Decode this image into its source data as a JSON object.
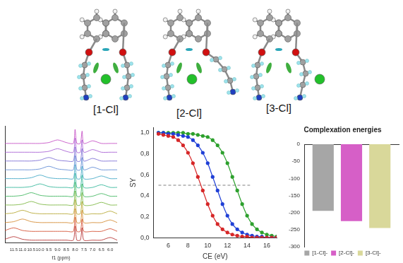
{
  "structures": {
    "labels": [
      "[1-Cl]",
      "[2-Cl]",
      "[3-Cl]"
    ]
  },
  "chart_data": [
    {
      "type": "line",
      "x_label": "f1 (ppm)",
      "marker": "none",
      "tick_labels": "x",
      "grid": false,
      "x": [
        12.0,
        11.5,
        11.0,
        10.5,
        10.0,
        9.5,
        9.0,
        8.5,
        8.1,
        8.0,
        7.9,
        7.7,
        7.6,
        7.5,
        7.0,
        6.5,
        6.0,
        5.6
      ],
      "xlim": [
        12.0,
        5.6
      ],
      "xticks": [
        {
          "value": 11.5,
          "label": "11.5"
        },
        {
          "value": 11,
          "label": "11.0"
        },
        {
          "value": 10.5,
          "label": "10.5"
        },
        {
          "value": 10,
          "label": "10.0"
        },
        {
          "value": 9.5,
          "label": "9.5"
        },
        {
          "value": 9,
          "label": "9.0"
        },
        {
          "value": 8.5,
          "label": "8.5"
        },
        {
          "value": 8,
          "label": "8.0"
        },
        {
          "value": 7.5,
          "label": "7.5"
        },
        {
          "value": 7,
          "label": "7.0"
        },
        {
          "value": 6.5,
          "label": "6.5"
        },
        {
          "value": 6,
          "label": "6.0"
        }
      ],
      "ylim": [
        -0.3,
        13
      ],
      "yticks": [],
      "series": [
        {
          "color": "#c040c0",
          "values": [
            11,
            11,
            11,
            11,
            11,
            11.1,
            11.4,
            11.1,
            11,
            12.6,
            11,
            11,
            12.4,
            11,
            11.3,
            11,
            11,
            11
          ]
        },
        {
          "color": "#a050d0",
          "values": [
            10,
            10,
            10,
            10,
            10,
            10.1,
            10.4,
            10.1,
            10,
            11.6,
            10,
            10,
            11.4,
            10,
            10.3,
            10,
            10,
            10
          ]
        },
        {
          "color": "#7060d0",
          "values": [
            9,
            9,
            9,
            9,
            9.1,
            9.4,
            9.1,
            9,
            9,
            10.6,
            9,
            9,
            10.4,
            9,
            9.3,
            9,
            9,
            9
          ]
        },
        {
          "color": "#5080d0",
          "values": [
            8,
            8,
            8,
            8,
            8.1,
            8.4,
            8.1,
            8,
            8,
            9.6,
            8,
            8,
            9.4,
            8,
            8.3,
            8,
            8,
            8
          ]
        },
        {
          "color": "#30a0c0",
          "values": [
            7,
            7,
            7,
            7.1,
            7.4,
            7.1,
            7,
            7,
            7,
            8.6,
            7,
            7,
            8.4,
            7,
            7,
            7.3,
            7,
            7
          ]
        },
        {
          "color": "#20b090",
          "values": [
            6,
            6,
            6,
            6.1,
            6.4,
            6.1,
            6,
            6,
            6,
            7.6,
            6,
            6,
            7.4,
            6,
            6,
            6.3,
            6,
            6
          ]
        },
        {
          "color": "#30b050",
          "values": [
            5,
            5,
            5.1,
            5.4,
            5.1,
            5,
            5,
            5,
            5,
            6.6,
            5,
            5,
            6.4,
            5,
            5,
            5.3,
            5,
            5
          ]
        },
        {
          "color": "#70b030",
          "values": [
            4,
            4,
            4.1,
            4.4,
            4.1,
            4,
            4,
            4,
            4,
            5.6,
            4,
            4,
            5.4,
            4,
            4,
            4.3,
            4,
            4
          ]
        },
        {
          "color": "#b0a020",
          "values": [
            3,
            3.1,
            3.4,
            3.1,
            3,
            3,
            3,
            3,
            3,
            4.6,
            3,
            3,
            4.4,
            3,
            3,
            3,
            3.3,
            3
          ]
        },
        {
          "color": "#d08020",
          "values": [
            2,
            2.1,
            2.4,
            2.1,
            2,
            2,
            2,
            2,
            2,
            3.6,
            2,
            2,
            3.4,
            2,
            2,
            2,
            2.3,
            2
          ]
        },
        {
          "color": "#d04020",
          "values": [
            1.1,
            1.4,
            1.1,
            1,
            1,
            1,
            1,
            1,
            1,
            2.6,
            1,
            1,
            2.4,
            1,
            1,
            1,
            1.3,
            1
          ]
        },
        {
          "color": "#b02020",
          "values": [
            0.1,
            0.4,
            0.1,
            0,
            0,
            0,
            0,
            0,
            0,
            1.6,
            0,
            0,
            1.4,
            0,
            0,
            0,
            0.3,
            0
          ]
        }
      ]
    },
    {
      "type": "line",
      "x_label": "CE (eV)",
      "y_label": "SY",
      "marker": "circle",
      "grid": false,
      "x": [
        5,
        5.5,
        6,
        6.5,
        7,
        7.5,
        8,
        8.5,
        9,
        9.5,
        10,
        10.5,
        11,
        11.5,
        12,
        12.5,
        13,
        13.5,
        14,
        14.5,
        15,
        15.5,
        16,
        16.5,
        17
      ],
      "xlim": [
        4.5,
        17
      ],
      "xticks": [
        6,
        8,
        10,
        12,
        14,
        16
      ],
      "ylim": [
        0,
        1.05
      ],
      "yticks": [
        {
          "value": 0,
          "label": "0,0"
        },
        {
          "value": 0.2,
          "label": "0,2"
        },
        {
          "value": 0.4,
          "label": "0,4"
        },
        {
          "value": 0.6,
          "label": "0,6"
        },
        {
          "value": 0.8,
          "label": "0,8"
        },
        {
          "value": 1,
          "label": "1,0"
        }
      ],
      "reference_line": {
        "y": 0.5,
        "x": [
          5,
          14.3
        ],
        "line_style": "dashed",
        "color": "#808080"
      },
      "series": [
        {
          "color": "#d62728",
          "values": [
            0.99,
            0.98,
            0.97,
            0.96,
            0.93,
            0.88,
            0.81,
            0.71,
            0.58,
            0.45,
            0.32,
            0.21,
            0.13,
            0.08,
            0.05,
            0.03,
            0.02,
            0.01,
            0.01,
            0,
            0,
            0,
            0,
            0,
            0
          ]
        },
        {
          "color": "#1f3fd6",
          "values": [
            1,
            1,
            0.99,
            0.99,
            0.98,
            0.97,
            0.96,
            0.93,
            0.88,
            0.81,
            0.71,
            0.58,
            0.45,
            0.32,
            0.21,
            0.13,
            0.08,
            0.05,
            0.03,
            0.02,
            0.01,
            0.01,
            0,
            0,
            0
          ]
        },
        {
          "color": "#2ca02c",
          "values": [
            1,
            1,
            1,
            1,
            1,
            1,
            0.99,
            0.99,
            0.98,
            0.97,
            0.96,
            0.93,
            0.88,
            0.81,
            0.71,
            0.58,
            0.45,
            0.32,
            0.21,
            0.13,
            0.08,
            0.05,
            0.03,
            0.02,
            0.01
          ]
        }
      ]
    },
    {
      "type": "bar",
      "title": "Complexation energies",
      "legend": "bottom",
      "grid": false,
      "tick_labels": "y",
      "categories": [
        null
      ],
      "ylim": [
        -300,
        0
      ],
      "yticks": [
        -300,
        -250,
        -200,
        -150,
        -100,
        -50,
        0
      ],
      "series": [
        {
          "name": "[1-Cl]-",
          "color": "#a6a6a6",
          "values": [
            -195
          ]
        },
        {
          "name": "[2-Cl]-",
          "color": "#d65fc7",
          "values": [
            -225
          ]
        },
        {
          "name": "[3-Cl]-",
          "color": "#d9d89a",
          "values": [
            -245
          ]
        }
      ]
    }
  ]
}
